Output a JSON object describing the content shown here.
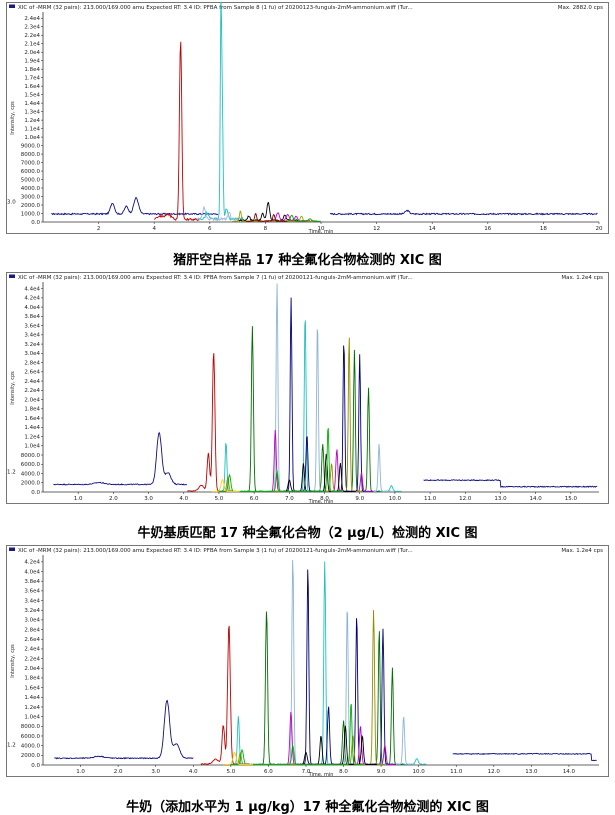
{
  "chart_data": [
    {
      "type": "line",
      "header": "XIC of -MRM (32 pairs): 213.000/169.000 amu  Expected RT: 3.4 ID: PFBA from Sample 8 (1 fu) of 20200123-funguls-2mM-ammonium.wiff (Tur...",
      "max_label": "Max. 2882.0 cps",
      "xlabel": "Time, min",
      "ylabel": "Intensity, cps",
      "x_ticks": [
        "2",
        "4",
        "6",
        "8",
        "10",
        "12",
        "14",
        "16",
        "18",
        "20"
      ],
      "y_ticks": [
        "0.0",
        "1000.0",
        "2000.0",
        "3000.0",
        "4000.0",
        "5000.0",
        "6000.0",
        "7000.0",
        "8000.0",
        "9000.0",
        "1.0e4",
        "1.1e4",
        "1.2e4",
        "1.3e4",
        "1.4e4",
        "1.5e4",
        "1.6e4",
        "1.7e4",
        "1.8e4",
        "1.9e4",
        "2.0e4",
        "2.1e4",
        "2.2e4",
        "2.3e4",
        "2.4e4"
      ],
      "xlim": [
        0,
        20
      ],
      "ylim": [
        0,
        24500
      ],
      "side_marker": "3.0",
      "caption": "猪肝空白样品 17 种全氟化合物检测的 XIC 图",
      "baseline": {
        "color": "#101080",
        "level": 950,
        "noise": 160,
        "gap": [
          6.3,
          10.3
        ],
        "bumps": [
          [
            2.5,
            1300,
            0.1
          ],
          [
            3.35,
            1900,
            0.12
          ],
          [
            3.0,
            900,
            0.1
          ],
          [
            13.1,
            400,
            0.1
          ]
        ]
      },
      "series": [
        {
          "color": "#c00000",
          "peaks": [
            [
              4.95,
              21000,
              0.06
            ],
            [
              4.5,
              600,
              0.15
            ],
            [
              4.2,
              400,
              0.15
            ]
          ],
          "range": [
            4.0,
            5.6
          ],
          "base": 300
        },
        {
          "color": "#20c0c0",
          "peaks": [
            [
              6.4,
              24000,
              0.035
            ],
            [
              6.45,
              12000,
              0.04
            ],
            [
              6.6,
              1200,
              0.06
            ],
            [
              5.9,
              700,
              0.08
            ]
          ],
          "range": [
            5.6,
            7.2
          ],
          "base": 350
        },
        {
          "color": "#9bb8d8",
          "peaks": [
            [
              5.8,
              1400,
              0.07
            ],
            [
              6.7,
              700,
              0.06
            ]
          ],
          "range": [
            5.5,
            7.0
          ],
          "base": 350
        },
        {
          "color": "#000000",
          "peaks": [
            [
              8.1,
              2100,
              0.07
            ],
            [
              7.9,
              900,
              0.06
            ],
            [
              8.7,
              600,
              0.07
            ],
            [
              7.4,
              500,
              0.06
            ]
          ],
          "range": [
            7.0,
            9.2
          ],
          "base": 200
        },
        {
          "color": "#c000c0",
          "peaks": [
            [
              8.45,
              900,
              0.08
            ],
            [
              8.8,
              700,
              0.08
            ],
            [
              9.1,
              500,
              0.07
            ]
          ],
          "range": [
            8.0,
            9.6
          ],
          "base": 150
        },
        {
          "color": "#a0a000",
          "peaks": [
            [
              7.1,
              1200,
              0.05
            ],
            [
              9.3,
              600,
              0.06
            ]
          ],
          "range": [
            6.8,
            9.8
          ],
          "base": 100
        },
        {
          "color": "#00a000",
          "peaks": [
            [
              8.95,
              700,
              0.07
            ],
            [
              9.6,
              300,
              0.07
            ]
          ],
          "range": [
            8.5,
            10.0
          ],
          "base": 100
        },
        {
          "color": "#800000",
          "peaks": [
            [
              7.65,
              900,
              0.05
            ],
            [
              8.3,
              800,
              0.05
            ]
          ],
          "range": [
            7.3,
            8.8
          ],
          "base": 100
        }
      ]
    },
    {
      "type": "line",
      "header": "XIC of -MRM (32 pairs): 213.000/169.000 amu  Expected RT: 3.4 ID: PFBA from Sample 7 (1 fu) of 20200121-funguls-2mM-ammonium.wiff (Tur...",
      "max_label": "Max. 1.2e4 cps",
      "xlabel": "Time, min",
      "ylabel": "Intensity, cps",
      "x_ticks": [
        "1.0",
        "2.0",
        "3.0",
        "4.0",
        "5.0",
        "6.0",
        "7.0",
        "8.0",
        "9.0",
        "10.0",
        "11.0",
        "12.0",
        "13.0",
        "14.0",
        "15.0"
      ],
      "y_ticks": [
        "0.0",
        "2000.0",
        "4000.0",
        "6000.0",
        "8000.0",
        "1.0e4",
        "1.2e4",
        "1.4e4",
        "1.6e4",
        "1.8e4",
        "2.0e4",
        "2.2e4",
        "2.4e4",
        "2.6e4",
        "2.8e4",
        "3.0e4",
        "3.2e4",
        "3.4e4",
        "3.6e4",
        "3.8e4",
        "4.0e4",
        "4.2e4",
        "4.4e4"
      ],
      "xlim": [
        0,
        15.8
      ],
      "ylim": [
        0,
        44000
      ],
      "side_marker": "1.2",
      "caption": "牛奶基质匹配 17 种全氟化合物（2 μg/L）检测的 XIC 图",
      "baseline": {
        "color": "#101080",
        "level": 1600,
        "noise": 200,
        "gap": [
          4.1,
          10.8
        ],
        "bumps": [
          [
            3.3,
            11000,
            0.1
          ],
          [
            3.55,
            2500,
            0.12
          ],
          [
            1.6,
            400,
            0.2
          ]
        ],
        "post_level": 2500,
        "post_drop": 13.0
      },
      "series": [
        {
          "color": "#c00000",
          "peaks": [
            [
              4.85,
              29500,
              0.05
            ],
            [
              4.7,
              8000,
              0.05
            ],
            [
              4.5,
              1200,
              0.1
            ]
          ],
          "range": [
            4.1,
            5.4
          ],
          "base": 200
        },
        {
          "color": "#20c0c0",
          "peaks": [
            [
              5.2,
              10500,
              0.035
            ],
            [
              7.45,
              38000,
              0.035
            ],
            [
              9.9,
              1200,
              0.05
            ]
          ],
          "range": [
            5.0,
            10.2
          ],
          "base": 150
        },
        {
          "color": "#007000",
          "peaks": [
            [
              5.95,
              35000,
              0.04
            ],
            [
              7.95,
              10000,
              0.04
            ],
            [
              8.85,
              30000,
              0.035
            ],
            [
              9.25,
              22000,
              0.035
            ]
          ],
          "range": [
            5.6,
            9.6
          ],
          "base": 150
        },
        {
          "color": "#8eb4d6",
          "peaks": [
            [
              6.65,
              44000,
              0.035
            ],
            [
              7.8,
              36000,
              0.035
            ],
            [
              9.55,
              10000,
              0.035
            ]
          ],
          "range": [
            6.3,
            9.9
          ],
          "base": 150
        },
        {
          "color": "#00007a",
          "peaks": [
            [
              7.05,
              41000,
              0.035
            ],
            [
              7.5,
              12000,
              0.04
            ],
            [
              8.55,
              32000,
              0.035
            ],
            [
              9.0,
              29000,
              0.035
            ]
          ],
          "range": [
            6.7,
            9.4
          ],
          "base": 150
        },
        {
          "color": "#c000c0",
          "peaks": [
            [
              6.6,
              13000,
              0.04
            ],
            [
              8.35,
              9000,
              0.04
            ],
            [
              9.05,
              4000,
              0.04
            ]
          ],
          "range": [
            6.3,
            9.4
          ],
          "base": 100
        },
        {
          "color": "#909000",
          "peaks": [
            [
              8.7,
              33000,
              0.035
            ],
            [
              8.2,
              6000,
              0.04
            ],
            [
              5.25,
              3000,
              0.04
            ]
          ],
          "range": [
            5.0,
            9.1
          ],
          "base": 100
        },
        {
          "color": "#000000",
          "peaks": [
            [
              7.4,
              6000,
              0.04
            ],
            [
              8.05,
              8000,
              0.04
            ],
            [
              8.45,
              6000,
              0.04
            ],
            [
              7.0,
              2500,
              0.05
            ]
          ],
          "range": [
            6.8,
            8.9
          ],
          "base": 100
        },
        {
          "color": "#00b000",
          "peaks": [
            [
              8.1,
              14000,
              0.035
            ],
            [
              6.65,
              4500,
              0.04
            ],
            [
              5.3,
              3500,
              0.05
            ]
          ],
          "range": [
            5.0,
            8.5
          ],
          "base": 100
        },
        {
          "color": "#ffd000",
          "peaks": [
            [
              5.1,
              2500,
              0.06
            ]
          ],
          "range": [
            4.8,
            5.6
          ],
          "base": 100
        }
      ]
    },
    {
      "type": "line",
      "header": "XIC of -MRM (32 pairs): 213.000/169.000 amu  Expected RT: 3.4 ID: PFBA from Sample 3 (1 fu) of 20200121-funguls-2mM-ammonium.wiff (Tur...",
      "max_label": "Max. 1.2e4 cps",
      "xlabel": "Time, min",
      "ylabel": "Intensity, cps",
      "x_ticks": [
        "1.0",
        "2.0",
        "3.0",
        "4.0",
        "5.0",
        "6.0",
        "7.0",
        "8.0",
        "9.0",
        "10.0",
        "11.0",
        "12.0",
        "13.0",
        "14.0"
      ],
      "y_ticks": [
        "0.0",
        "2000.0",
        "4000.0",
        "6000.0",
        "8000.0",
        "1.0e4",
        "1.2e4",
        "1.4e4",
        "1.6e4",
        "1.8e4",
        "2.0e4",
        "2.2e4",
        "2.4e4",
        "2.6e4",
        "2.8e4",
        "3.0e4",
        "3.2e4",
        "3.4e4",
        "3.6e4",
        "3.8e4",
        "4.0e4",
        "4.2e4"
      ],
      "xlim": [
        0,
        14.8
      ],
      "ylim": [
        0,
        43000
      ],
      "side_marker": "1.2",
      "caption": "牛奶（添加水平为 1 μg/kg）17 种全氟化合物检测的 XIC 图",
      "baseline": {
        "color": "#101080",
        "level": 1400,
        "noise": 200,
        "gap": [
          4.0,
          10.9
        ],
        "bumps": [
          [
            3.3,
            12000,
            0.1
          ],
          [
            3.55,
            3000,
            0.12
          ],
          [
            1.5,
            400,
            0.2
          ]
        ],
        "post_level": 2300,
        "post_drop": 14.6
      },
      "series": [
        {
          "color": "#c00000",
          "peaks": [
            [
              4.95,
              29000,
              0.05
            ],
            [
              4.8,
              8000,
              0.05
            ],
            [
              4.6,
              1000,
              0.1
            ]
          ],
          "range": [
            4.2,
            5.5
          ],
          "base": 200
        },
        {
          "color": "#20c0c0",
          "peaks": [
            [
              5.2,
              10000,
              0.035
            ],
            [
              7.5,
              42000,
              0.035
            ],
            [
              9.95,
              1200,
              0.05
            ]
          ],
          "range": [
            5.0,
            10.2
          ],
          "base": 150
        },
        {
          "color": "#007000",
          "peaks": [
            [
              5.95,
              32000,
              0.04
            ],
            [
              8.0,
              9000,
              0.04
            ],
            [
              8.95,
              28000,
              0.035
            ],
            [
              9.3,
              20000,
              0.035
            ]
          ],
          "range": [
            5.6,
            9.6
          ],
          "base": 150
        },
        {
          "color": "#8eb4d6",
          "peaks": [
            [
              6.65,
              43000,
              0.035
            ],
            [
              8.1,
              33000,
              0.035
            ],
            [
              9.6,
              10000,
              0.035
            ]
          ],
          "range": [
            6.3,
            9.9
          ],
          "base": 150
        },
        {
          "color": "#00007a",
          "peaks": [
            [
              7.05,
              41000,
              0.035
            ],
            [
              7.6,
              12000,
              0.04
            ],
            [
              8.35,
              31000,
              0.035
            ],
            [
              9.05,
              28000,
              0.035
            ]
          ],
          "range": [
            6.7,
            9.4
          ],
          "base": 150
        },
        {
          "color": "#c000c0",
          "peaks": [
            [
              6.6,
              11000,
              0.04
            ],
            [
              8.45,
              8000,
              0.04
            ],
            [
              9.1,
              4000,
              0.04
            ]
          ],
          "range": [
            6.3,
            9.4
          ],
          "base": 100
        },
        {
          "color": "#909000",
          "peaks": [
            [
              8.8,
              32000,
              0.035
            ],
            [
              8.25,
              6000,
              0.04
            ],
            [
              5.25,
              2500,
              0.04
            ]
          ],
          "range": [
            5.0,
            9.1
          ],
          "base": 100
        },
        {
          "color": "#000000",
          "peaks": [
            [
              7.4,
              6000,
              0.04
            ],
            [
              8.05,
              8000,
              0.04
            ],
            [
              8.5,
              6000,
              0.04
            ],
            [
              7.0,
              2500,
              0.05
            ]
          ],
          "range": [
            6.8,
            8.9
          ],
          "base": 100
        },
        {
          "color": "#00b000",
          "peaks": [
            [
              8.2,
              13000,
              0.035
            ],
            [
              6.65,
              4000,
              0.04
            ],
            [
              5.3,
              3000,
              0.05
            ]
          ],
          "range": [
            5.0,
            8.5
          ],
          "base": 100
        },
        {
          "color": "#ffd000",
          "peaks": [
            [
              5.1,
              2500,
              0.06
            ]
          ],
          "range": [
            4.8,
            5.6
          ],
          "base": 100
        }
      ]
    }
  ]
}
